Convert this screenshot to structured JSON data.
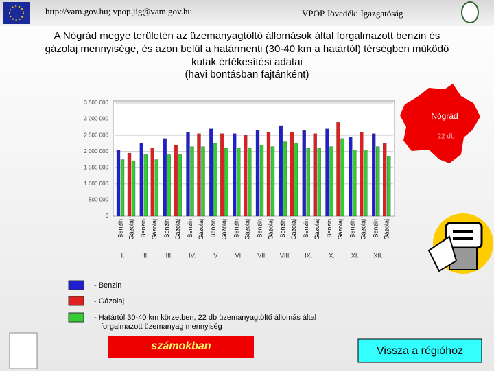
{
  "header": {
    "left": "http://vam.gov.hu; vpop.jig@vam.gov.hu",
    "right": "VPOP Jövedéki Igazgatóság"
  },
  "title_lines": [
    "A Nógrád megye területén az üzemanyagtöltő állomások által forgalmazott benzin és",
    "gázolaj mennyisége, és azon belül a határmenti (30-40 km a határtól) térségben működő",
    "kutak értékesítési adatai",
    "(havi bontásban fajtánként)"
  ],
  "map": {
    "name": "Nógrád",
    "count": "22 db"
  },
  "buttons": {
    "numbers": "számokban",
    "back": "Vissza a régióhoz"
  },
  "chart_data": {
    "type": "bar",
    "categories": [
      "I.",
      "II.",
      "III.",
      "IV.",
      "V",
      "VI.",
      "VII.",
      "VIII.",
      "IX.",
      "X.",
      "XI.",
      "XII."
    ],
    "bar_labels": [
      "Benzin",
      "Gázolaj"
    ],
    "series": [
      {
        "name": "Benzin",
        "color": "#1f1fd0",
        "values": [
          2050000,
          2250000,
          2400000,
          2600000,
          2700000,
          2550000,
          2650000,
          2800000,
          2650000,
          2700000,
          2450000,
          2550000
        ],
        "border_color": "#33cc33",
        "border_values": [
          1750000,
          1900000,
          1900000,
          2150000,
          2250000,
          2100000,
          2200000,
          2300000,
          2100000,
          2150000,
          2050000,
          2150000
        ]
      },
      {
        "name": "Gázolaj",
        "color": "#e02020",
        "values": [
          1950000,
          2100000,
          2200000,
          2550000,
          2550000,
          2500000,
          2600000,
          2600000,
          2550000,
          2900000,
          2600000,
          2250000
        ],
        "border_color": "#33cc33",
        "border_values": [
          1700000,
          1750000,
          1900000,
          2150000,
          2100000,
          2100000,
          2150000,
          2250000,
          2100000,
          2400000,
          2050000,
          1850000
        ]
      }
    ],
    "ylim": [
      0,
      3500000
    ],
    "yticks": [
      0,
      {
        "value": 500000,
        "label": "500 000"
      },
      {
        "value": 1000000,
        "label": "1 000 000"
      },
      {
        "value": 1500000,
        "label": "1 500 000"
      },
      {
        "value": 2000000,
        "label": "2 000 000"
      },
      {
        "value": 2500000,
        "label": "2 500 000"
      },
      {
        "value": 3000000,
        "label": "3 000 000"
      },
      {
        "value": 3500000,
        "label": "3 500 000"
      }
    ],
    "grid": true,
    "legend": [
      {
        "label": "- Benzin",
        "color": "#1f1fd0"
      },
      {
        "label": "- Gázolaj",
        "color": "#e02020"
      },
      {
        "label": "- Határtól 30-40 km körzetben, 22 db üzemanyagtöltő állomás által",
        "label2": "forgalmazott üzemanyag mennyiség",
        "color": "#33cc33"
      }
    ]
  }
}
